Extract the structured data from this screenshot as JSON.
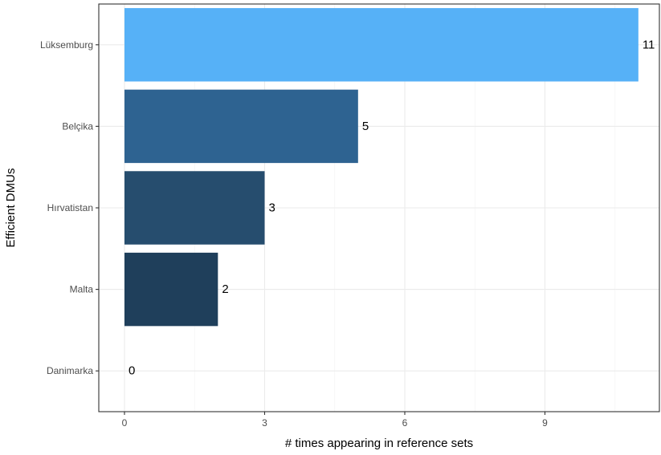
{
  "chart_data": {
    "type": "bar",
    "orientation": "horizontal",
    "categories": [
      "Lüksemburg",
      "Belçika",
      "Hırvatistan",
      "Malta",
      "Danimarka"
    ],
    "values": [
      11,
      5,
      3,
      2,
      0
    ],
    "value_labels": [
      "11",
      "5",
      "3",
      "2",
      "0"
    ],
    "bar_colors": [
      "#56b1f7",
      "#2e6391",
      "#264d6e",
      "#1f3f5b",
      "#132b43"
    ],
    "xlabel": "# times appearing in reference sets",
    "ylabel": "Efficient DMUs",
    "xticks": [
      0,
      3,
      6,
      9
    ],
    "xtick_labels": [
      "0",
      "3",
      "6",
      "9"
    ],
    "xlim": [
      -0.55,
      11.45
    ],
    "grid": true,
    "legend": "none"
  }
}
